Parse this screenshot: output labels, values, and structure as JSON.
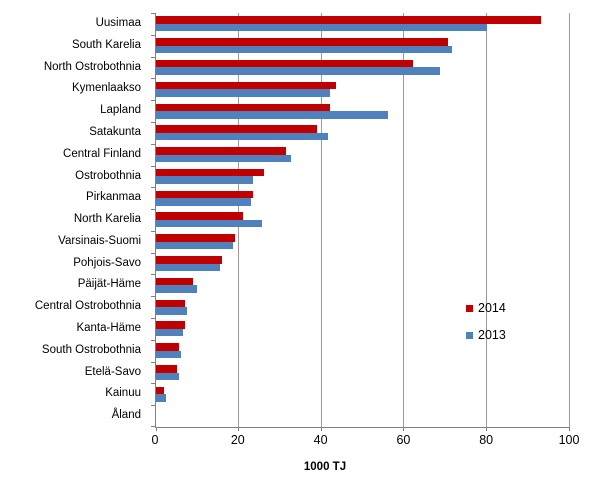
{
  "chart_data": {
    "type": "bar",
    "orientation": "horizontal",
    "title": "",
    "xlabel": "1000 TJ",
    "ylabel": "",
    "xlim": [
      0,
      100
    ],
    "xticks": [
      0,
      20,
      40,
      60,
      80,
      100
    ],
    "grid": true,
    "legend_position": "right-inside",
    "categories": [
      "Uusimaa",
      "South Karelia",
      "North Ostrobothnia",
      "Kymenlaakso",
      "Lapland",
      "Satakunta",
      "Central Finland",
      "Ostrobothnia",
      "Pirkanmaa",
      "North Karelia",
      "Varsinais-Suomi",
      "Pohjois-Savo",
      "Päijät-Häme",
      "Central Ostrobothnia",
      "Kanta-Häme",
      "South Ostrobothnia",
      "Etelä-Savo",
      "Kainuu",
      "Åland"
    ],
    "series": [
      {
        "name": "2014",
        "color": "#C00000",
        "values": [
          93,
          70.5,
          62,
          43.5,
          42,
          39,
          31.5,
          26,
          23.5,
          21,
          19,
          16,
          9,
          7,
          7,
          5.5,
          5,
          2,
          0
        ]
      },
      {
        "name": "2013",
        "color": "#4F81BD",
        "values": [
          80,
          71.5,
          68.5,
          42,
          56,
          41.5,
          32.5,
          23.5,
          23,
          25.5,
          18.5,
          15.5,
          10,
          7.5,
          6.5,
          6,
          5.5,
          2.5,
          0
        ]
      }
    ]
  },
  "colors": {
    "gridline": "#9B9B9B",
    "axis": "#808080",
    "text": "#000000",
    "background": "#FFFFFF"
  }
}
